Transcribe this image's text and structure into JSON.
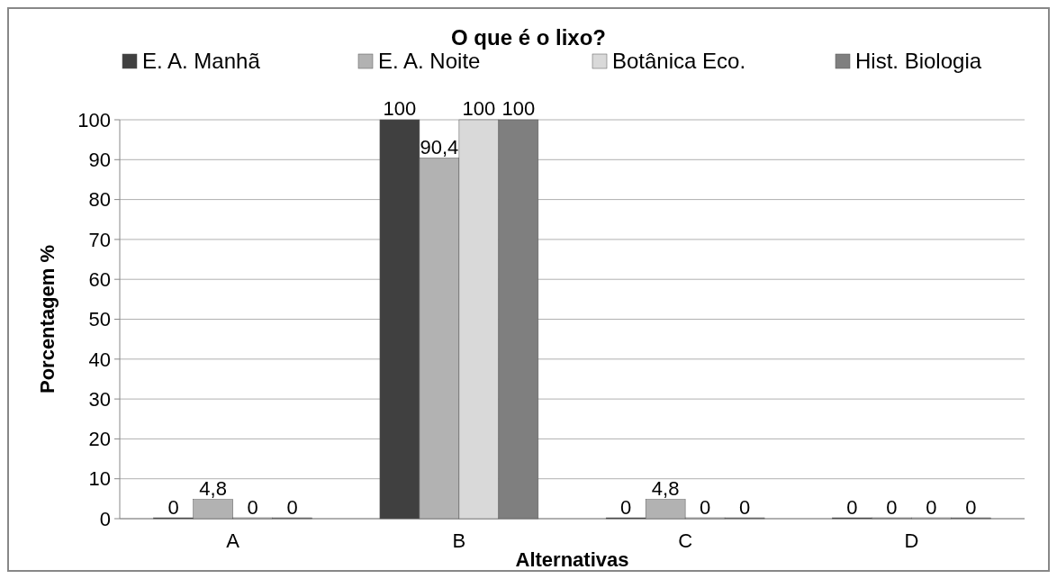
{
  "chart_data": {
    "type": "bar",
    "title": "O que é o lixo?",
    "xlabel": "Alternativas",
    "ylabel": "Porcentagem %",
    "categories": [
      "A",
      "B",
      "C",
      "D"
    ],
    "series": [
      {
        "name": "E. A. Manhã",
        "color": "#404040",
        "values": [
          0,
          100,
          0,
          0
        ],
        "value_labels": [
          "0",
          "100",
          "0",
          "0"
        ]
      },
      {
        "name": "E. A. Noite",
        "color": "#b2b2b2",
        "values": [
          4.8,
          90.4,
          4.8,
          0
        ],
        "value_labels": [
          "4,8",
          "90,4",
          "4,8",
          "0"
        ]
      },
      {
        "name": "Botânica Eco.",
        "color": "#d9d9d9",
        "values": [
          0,
          100,
          0,
          0
        ],
        "value_labels": [
          "0",
          "100",
          "0",
          "0"
        ]
      },
      {
        "name": "Hist. Biologia",
        "color": "#7f7f7f",
        "values": [
          0,
          100,
          0,
          0
        ],
        "value_labels": [
          "0",
          "100",
          "0",
          "0"
        ]
      }
    ],
    "ylim": [
      0,
      100
    ],
    "yticks": [
      0,
      10,
      20,
      30,
      40,
      50,
      60,
      70,
      80,
      90,
      100
    ],
    "grid": "y",
    "legend": "top"
  }
}
